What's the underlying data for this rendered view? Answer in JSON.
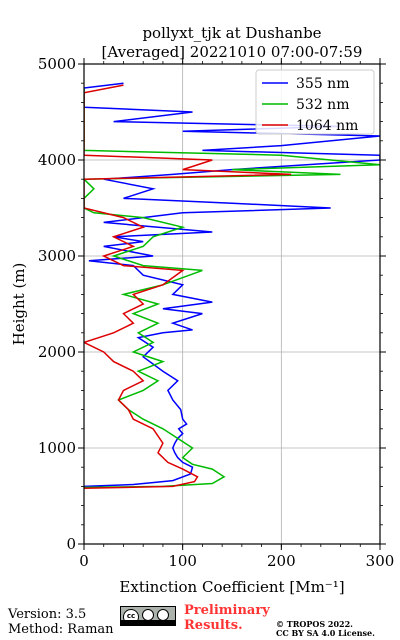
{
  "chart_data": {
    "type": "line",
    "title": "pollyxt_tjk at Dushanbe",
    "subtitle": "[Averaged] 20221010 07:00-07:59",
    "xlabel": "Extinction Coefficient [Mm⁻¹]",
    "ylabel": "Height (m)",
    "xlim": [
      0,
      300
    ],
    "ylim": [
      0,
      5000
    ],
    "xticks": [
      0,
      100,
      200,
      300
    ],
    "yticks": [
      0,
      1000,
      2000,
      3000,
      4000,
      5000
    ],
    "grid": true,
    "legend": "top-right",
    "series": [
      {
        "name": "355 nm",
        "color": "#0000ff",
        "points": [
          [
            0,
            600
          ],
          [
            50,
            620
          ],
          [
            90,
            660
          ],
          [
            108,
            730
          ],
          [
            110,
            800
          ],
          [
            100,
            850
          ],
          [
            95,
            900
          ],
          [
            92,
            950
          ],
          [
            90,
            1000
          ],
          [
            92,
            1050
          ],
          [
            95,
            1100
          ],
          [
            100,
            1150
          ],
          [
            96,
            1200
          ],
          [
            104,
            1250
          ],
          [
            100,
            1300
          ],
          [
            98,
            1400
          ],
          [
            90,
            1500
          ],
          [
            85,
            1600
          ],
          [
            95,
            1700
          ],
          [
            80,
            1800
          ],
          [
            60,
            1950
          ],
          [
            70,
            2050
          ],
          [
            55,
            2150
          ],
          [
            80,
            2200
          ],
          [
            110,
            2230
          ],
          [
            90,
            2300
          ],
          [
            120,
            2400
          ],
          [
            80,
            2450
          ],
          [
            130,
            2520
          ],
          [
            90,
            2600
          ],
          [
            100,
            2700
          ],
          [
            60,
            2800
          ],
          [
            50,
            2900
          ],
          [
            5,
            2950
          ],
          [
            70,
            3000
          ],
          [
            20,
            3100
          ],
          [
            60,
            3150
          ],
          [
            30,
            3200
          ],
          [
            130,
            3250
          ],
          [
            20,
            3350
          ],
          [
            60,
            3400
          ],
          [
            100,
            3450
          ],
          [
            250,
            3500
          ],
          [
            150,
            3550
          ],
          [
            40,
            3600
          ],
          [
            70,
            3700
          ],
          [
            20,
            3800
          ],
          [
            90,
            3850
          ],
          [
            150,
            3900
          ],
          [
            300,
            4000
          ],
          [
            300,
            4050
          ],
          [
            120,
            4100
          ],
          [
            200,
            4150
          ],
          [
            300,
            4250
          ],
          [
            100,
            4300
          ],
          [
            260,
            4350
          ],
          [
            30,
            4400
          ],
          [
            110,
            4500
          ],
          [
            0,
            4550
          ],
          [
            0,
            4750
          ],
          [
            40,
            4800
          ]
        ]
      },
      {
        "name": "532 nm",
        "color": "#00bb00",
        "points": [
          [
            0,
            590
          ],
          [
            80,
            600
          ],
          [
            130,
            630
          ],
          [
            142,
            700
          ],
          [
            130,
            780
          ],
          [
            110,
            830
          ],
          [
            100,
            900
          ],
          [
            110,
            1000
          ],
          [
            95,
            1100
          ],
          [
            80,
            1200
          ],
          [
            60,
            1300
          ],
          [
            45,
            1400
          ],
          [
            35,
            1500
          ],
          [
            60,
            1600
          ],
          [
            75,
            1700
          ],
          [
            55,
            1800
          ],
          [
            80,
            1900
          ],
          [
            50,
            2000
          ],
          [
            70,
            2100
          ],
          [
            55,
            2200
          ],
          [
            75,
            2300
          ],
          [
            50,
            2400
          ],
          [
            75,
            2500
          ],
          [
            40,
            2600
          ],
          [
            80,
            2700
          ],
          [
            120,
            2850
          ],
          [
            60,
            2900
          ],
          [
            30,
            3000
          ],
          [
            60,
            3100
          ],
          [
            70,
            3200
          ],
          [
            100,
            3300
          ],
          [
            60,
            3400
          ],
          [
            10,
            3450
          ],
          [
            0,
            3500
          ],
          [
            0,
            3600
          ],
          [
            10,
            3700
          ],
          [
            0,
            3800
          ],
          [
            260,
            3850
          ],
          [
            150,
            3900
          ],
          [
            300,
            3950
          ],
          [
            200,
            4050
          ],
          [
            0,
            4100
          ],
          [
            0,
            4750
          ]
        ]
      },
      {
        "name": "1064 nm",
        "color": "#dd0000",
        "points": [
          [
            0,
            580
          ],
          [
            90,
            600
          ],
          [
            112,
            650
          ],
          [
            115,
            700
          ],
          [
            100,
            780
          ],
          [
            85,
            850
          ],
          [
            75,
            950
          ],
          [
            80,
            1050
          ],
          [
            70,
            1200
          ],
          [
            50,
            1300
          ],
          [
            45,
            1400
          ],
          [
            35,
            1500
          ],
          [
            40,
            1600
          ],
          [
            60,
            1700
          ],
          [
            50,
            1800
          ],
          [
            30,
            1900
          ],
          [
            20,
            2000
          ],
          [
            0,
            2100
          ],
          [
            30,
            2200
          ],
          [
            50,
            2300
          ],
          [
            40,
            2400
          ],
          [
            60,
            2500
          ],
          [
            50,
            2600
          ],
          [
            80,
            2700
          ],
          [
            100,
            2850
          ],
          [
            40,
            2900
          ],
          [
            20,
            3000
          ],
          [
            50,
            3100
          ],
          [
            30,
            3200
          ],
          [
            60,
            3300
          ],
          [
            40,
            3400
          ],
          [
            0,
            3500
          ],
          [
            0,
            3800
          ],
          [
            210,
            3850
          ],
          [
            100,
            3900
          ],
          [
            130,
            4000
          ],
          [
            0,
            4050
          ],
          [
            0,
            4700
          ],
          [
            40,
            4780
          ]
        ]
      }
    ]
  },
  "footer": {
    "version": "Version: 3.5",
    "method": "Method: Raman",
    "preliminary_line1": "Preliminary",
    "preliminary_line2": "Results.",
    "copyright_line1": "© TROPOS 2022.",
    "copyright_line2": "CC BY SA 4.0 License."
  }
}
